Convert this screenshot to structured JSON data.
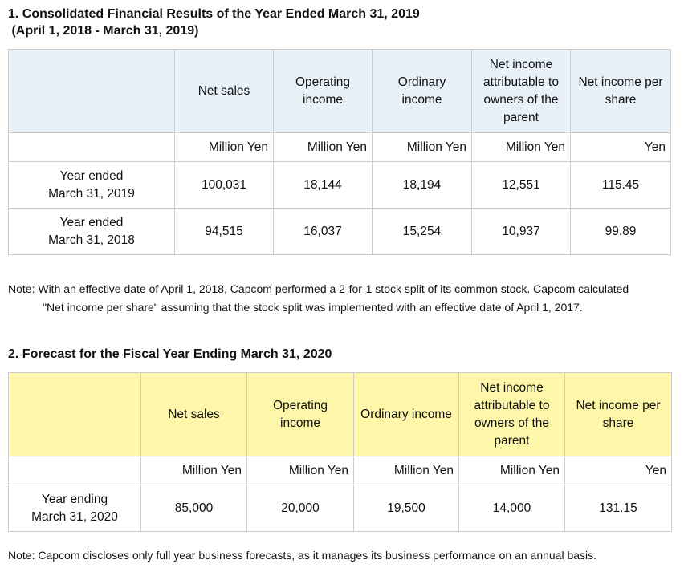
{
  "section1": {
    "title": "1. Consolidated Financial Results of the Year Ended March 31, 2019",
    "subtitle": " (April 1, 2018 - March 31, 2019)",
    "headers": [
      "Net sales",
      "Operating income",
      "Ordinary income",
      "Net income attributable to owners of the parent",
      "Net income per share"
    ],
    "units": [
      "Million Yen",
      "Million Yen",
      "Million Yen",
      "Million Yen",
      "Yen"
    ],
    "rows": [
      {
        "label": [
          "Year ended",
          "March 31, 2019"
        ],
        "values": [
          "100,031",
          "18,144",
          "18,194",
          "12,551",
          "115.45"
        ]
      },
      {
        "label": [
          "Year ended",
          "March 31, 2018"
        ],
        "values": [
          "94,515",
          "16,037",
          "15,254",
          "10,937",
          "99.89"
        ]
      }
    ],
    "note_line1": "Note: With an effective date of April 1, 2018, Capcom performed a 2-for-1 stock split of its common stock. Capcom calculated",
    "note_line2": "\"Net income per share\" assuming that the stock split was implemented with an effective date of April 1, 2017.",
    "header_color": "#e8f0f8"
  },
  "section2": {
    "title": "2. Forecast for the Fiscal Year Ending March 31, 2020",
    "headers": [
      "Net sales",
      "Operating income",
      "Ordinary income",
      "Net income attributable to owners of the parent",
      "Net income per share"
    ],
    "units": [
      "Million Yen",
      "Million Yen",
      "Million Yen",
      "Million Yen",
      "Yen"
    ],
    "rows": [
      {
        "label": [
          "Year ending",
          "March 31, 2020"
        ],
        "values": [
          "85,000",
          "20,000",
          "19,500",
          "14,000",
          "131.15"
        ]
      }
    ],
    "note": "Note: Capcom discloses only full year business forecasts, as it manages its business performance on an annual basis.",
    "header_color": "#fef7a9"
  }
}
